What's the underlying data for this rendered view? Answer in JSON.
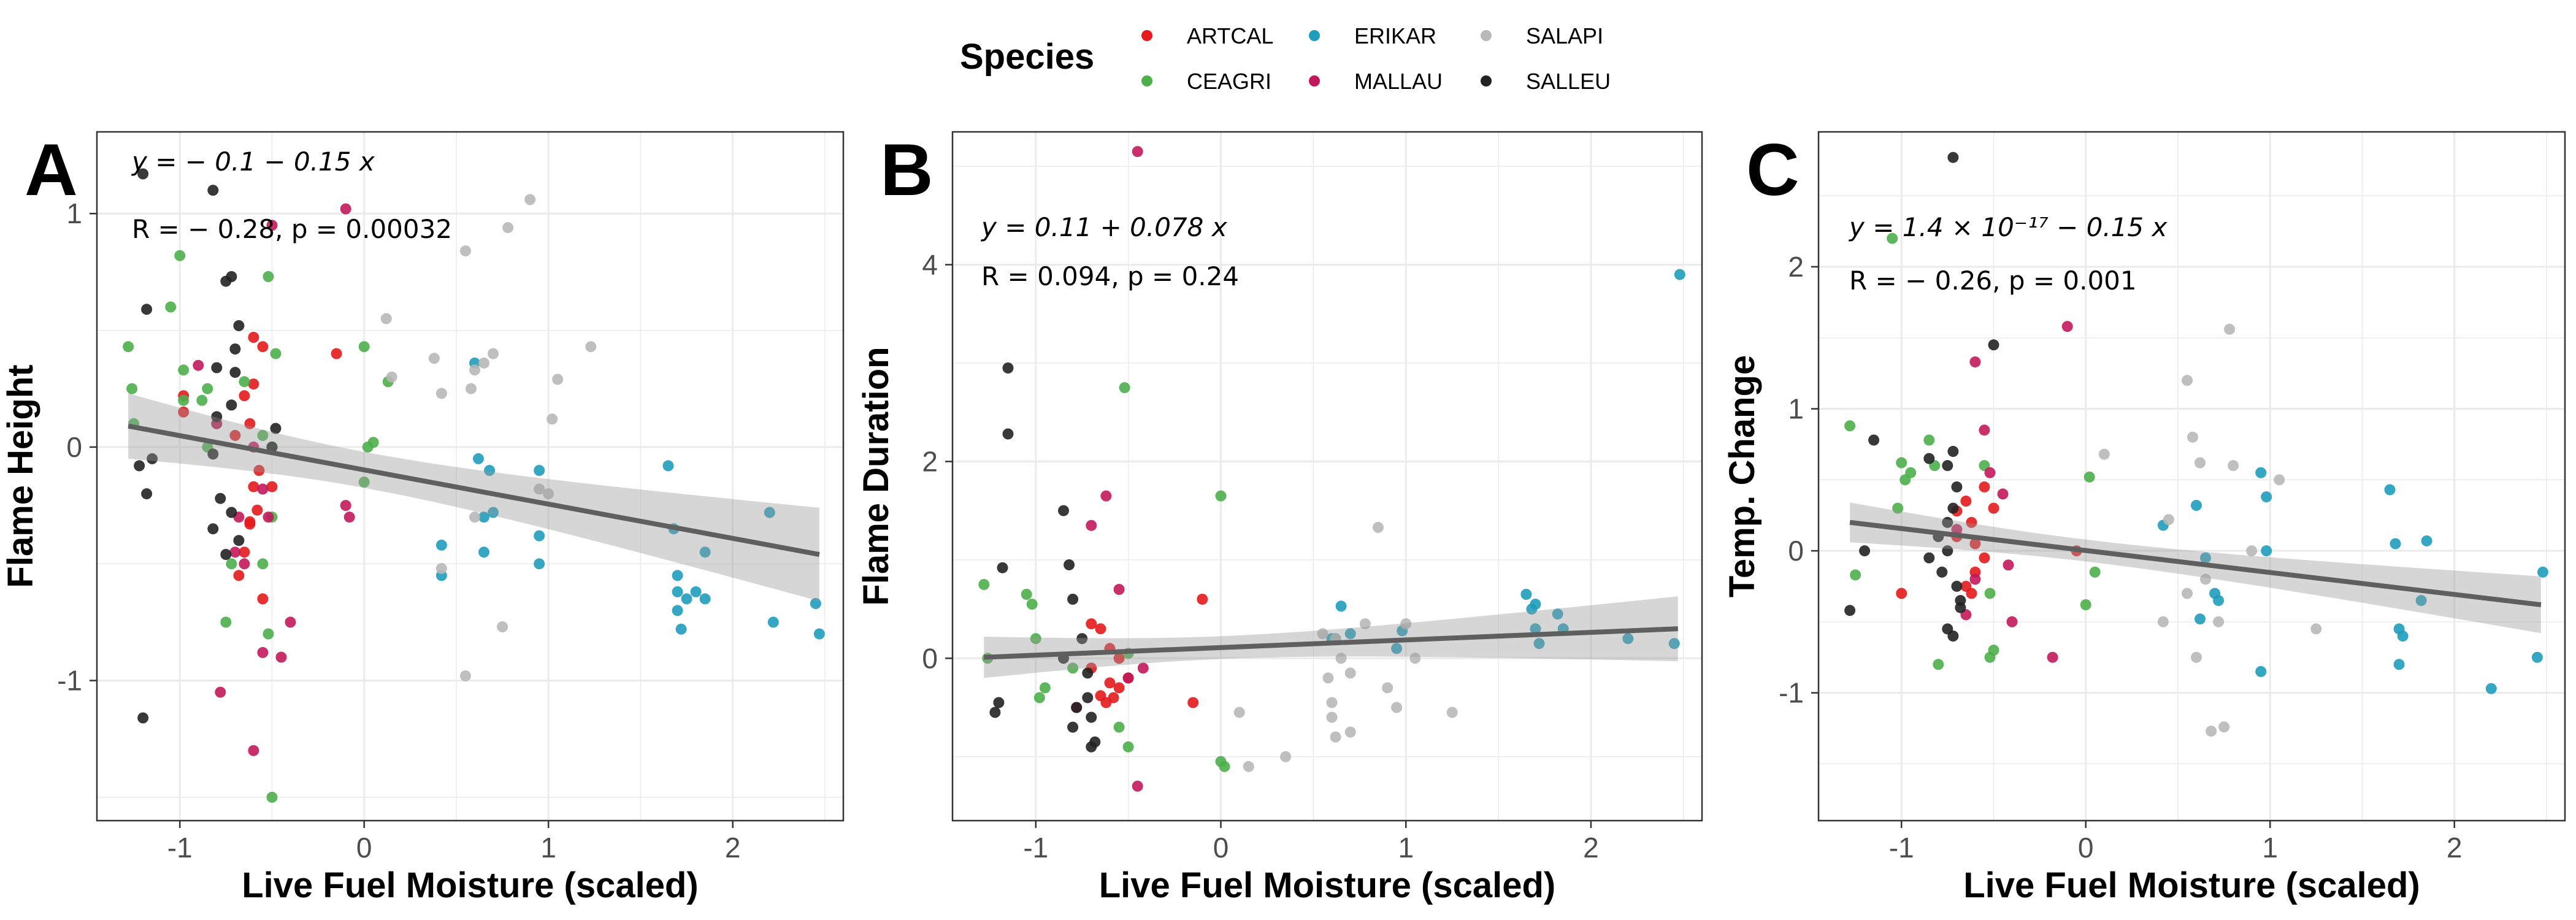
{
  "chart_data": {
    "legend": {
      "title": "Species",
      "placement": "top-center",
      "items": [
        {
          "label": "ARTCAL",
          "color": "#e41a1c"
        },
        {
          "label": "CEAGRI",
          "color": "#4daf4a"
        },
        {
          "label": "ERIKAR",
          "color": "#1f9dbb"
        },
        {
          "label": "MALLAU",
          "color": "#c2185b"
        },
        {
          "label": "SALAPI",
          "color": "#b8b8b8"
        },
        {
          "label": "SALLEU",
          "color": "#222222"
        }
      ]
    },
    "panels": [
      {
        "type": "scatter",
        "panel_label": "A",
        "xlabel": "Live Fuel Moisture (scaled)",
        "ylabel": "Flame Height",
        "xlim": [
          -1.45,
          2.6
        ],
        "ylim": [
          -1.6,
          1.35
        ],
        "xticks": [
          -1,
          0,
          1,
          2
        ],
        "yticks": [
          -1,
          0,
          1
        ],
        "grid": true,
        "equation": "y = − 0.1 − 0.15 x",
        "stats": "R = − 0.28, p = 0.00032",
        "fit": {
          "x": [
            -1.28,
            2.47
          ],
          "y": [
            0.09,
            -0.46
          ],
          "ci_lo": [
            -0.05,
            -0.66
          ],
          "ci_hi": [
            0.21,
            -0.24
          ],
          "xm": 0.0,
          "ym": -0.08
        },
        "series": [
          {
            "name": "ARTCAL",
            "color": "#e41a1c",
            "x": [
              -0.98,
              -0.6,
              -0.55,
              -0.6,
              -0.65,
              -0.62,
              -0.7,
              -0.57,
              -0.5,
              -0.58,
              -0.62,
              -0.65,
              -0.68,
              -0.55,
              -0.6,
              -0.62,
              -0.5,
              -0.15,
              -0.98
            ],
            "y": [
              0.22,
              0.47,
              0.43,
              0.27,
              0.22,
              0.1,
              0.05,
              -0.1,
              -0.17,
              -0.27,
              -0.33,
              -0.45,
              -0.55,
              -0.65,
              -0.17,
              -0.32,
              0.0,
              0.4,
              0.15
            ]
          },
          {
            "name": "CEAGRI",
            "color": "#4daf4a",
            "x": [
              -1.28,
              -1.26,
              -1.25,
              -1.05,
              -1.0,
              -0.98,
              -0.98,
              -0.88,
              -0.85,
              -0.8,
              -0.65,
              -0.55,
              -0.52,
              -0.5,
              -0.5,
              -0.55,
              -0.52,
              -0.5,
              -0.48,
              0.0,
              0.02,
              0.0,
              0.05,
              0.13,
              -0.75,
              -0.72,
              -0.85
            ],
            "y": [
              0.43,
              0.25,
              0.1,
              0.6,
              0.82,
              0.33,
              0.2,
              0.2,
              0.25,
              0.1,
              0.28,
              0.05,
              0.73,
              0.0,
              -0.3,
              -0.5,
              -0.8,
              -1.5,
              0.4,
              0.43,
              0.0,
              -0.15,
              0.02,
              0.28,
              -0.75,
              -0.5,
              0.0
            ]
          },
          {
            "name": "ERIKAR",
            "color": "#1f9dbb",
            "x": [
              0.6,
              0.62,
              0.68,
              0.7,
              0.65,
              0.95,
              0.95,
              0.95,
              0.42,
              0.42,
              1.65,
              1.68,
              1.7,
              1.7,
              1.72,
              1.75,
              1.8,
              1.85,
              1.85,
              2.2,
              2.22,
              2.45,
              2.47,
              0.65,
              1.7
            ],
            "y": [
              0.36,
              -0.05,
              -0.1,
              -0.28,
              -0.45,
              -0.1,
              -0.38,
              -0.5,
              -0.55,
              -0.42,
              -0.08,
              -0.35,
              -0.55,
              -0.7,
              -0.78,
              -0.65,
              -0.62,
              -0.65,
              -0.45,
              -0.28,
              -0.75,
              -0.67,
              -0.8,
              -0.3,
              -0.62
            ]
          },
          {
            "name": "MALLAU",
            "color": "#c2185b",
            "x": [
              -0.9,
              -0.8,
              -0.78,
              -0.68,
              -0.65,
              -0.6,
              -0.55,
              -0.52,
              -0.45,
              -0.4,
              -0.1,
              -0.1,
              -0.08,
              -0.55,
              -0.6,
              -0.7,
              -0.5
            ],
            "y": [
              0.35,
              0.1,
              -1.05,
              -0.3,
              -0.5,
              -1.3,
              -0.18,
              -0.3,
              -0.9,
              -0.75,
              1.02,
              -0.25,
              -0.3,
              -0.88,
              0.0,
              -0.45,
              0.95
            ]
          },
          {
            "name": "SALAPI",
            "color": "#b8b8b8",
            "x": [
              0.12,
              0.15,
              0.38,
              0.42,
              0.55,
              0.58,
              0.6,
              0.65,
              0.7,
              0.78,
              0.9,
              0.95,
              1.02,
              1.05,
              1.23,
              0.42,
              0.55,
              0.75,
              1.0,
              0.6
            ],
            "y": [
              0.55,
              0.3,
              0.38,
              0.23,
              0.84,
              0.25,
              0.33,
              0.36,
              0.4,
              0.94,
              1.06,
              -0.18,
              0.12,
              0.29,
              0.43,
              -0.52,
              -0.98,
              -0.77,
              -0.2,
              -0.3
            ]
          },
          {
            "name": "SALLEU",
            "color": "#222222",
            "x": [
              -1.2,
              -1.18,
              -1.15,
              -1.22,
              -1.18,
              -1.2,
              -0.82,
              -0.8,
              -0.75,
              -0.72,
              -0.68,
              -0.7,
              -0.72,
              -0.8,
              -0.82,
              -0.78,
              -0.72,
              -0.5,
              -0.48,
              -0.75,
              -0.82,
              -0.68,
              -0.7
            ],
            "y": [
              1.17,
              0.59,
              -0.05,
              -0.08,
              -0.2,
              -1.16,
              1.1,
              0.34,
              0.71,
              0.73,
              0.52,
              0.42,
              0.18,
              0.13,
              -0.03,
              -0.22,
              -0.28,
              0.0,
              0.08,
              -0.46,
              -0.35,
              -0.4,
              0.32
            ]
          }
        ]
      },
      {
        "type": "scatter",
        "panel_label": "B",
        "xlabel": "Live Fuel Moisture (scaled)",
        "ylabel": "Flame Duration",
        "xlim": [
          -1.45,
          2.6
        ],
        "ylim": [
          -1.65,
          5.35
        ],
        "xticks": [
          -1,
          0,
          1,
          2
        ],
        "yticks": [
          0,
          2,
          4
        ],
        "grid": true,
        "equation": "y = 0.11 + 0.078 x",
        "stats": "R = 0.094, p = 0.24",
        "fit": {
          "x": [
            -1.28,
            2.47
          ],
          "y": [
            0.01,
            0.3
          ],
          "ci_lo": [
            -0.2,
            -0.03
          ],
          "ci_hi": [
            0.22,
            0.65
          ],
          "xm": 0.0,
          "ym": 0.11
        },
        "series": [
          {
            "name": "ARTCAL",
            "color": "#e41a1c",
            "x": [
              -0.7,
              -0.65,
              -0.6,
              -0.55,
              -0.6,
              -0.65,
              -0.62,
              -0.58,
              -0.55,
              -0.5,
              -0.15,
              -0.1,
              -0.7
            ],
            "y": [
              0.35,
              0.3,
              0.1,
              0.0,
              -0.25,
              -0.38,
              -0.45,
              -0.4,
              -0.3,
              -0.2,
              -0.45,
              0.6,
              -0.1
            ]
          },
          {
            "name": "CEAGRI",
            "color": "#4daf4a",
            "x": [
              -1.28,
              -1.26,
              -1.05,
              -1.02,
              -1.0,
              -0.98,
              -0.52,
              -0.55,
              -0.5,
              -0.5,
              0.0,
              0.0,
              0.02,
              -0.8,
              -0.95
            ],
            "y": [
              0.75,
              0.0,
              0.65,
              0.55,
              0.2,
              -0.4,
              2.75,
              -0.7,
              0.05,
              -0.9,
              1.65,
              -1.05,
              -1.1,
              -0.1,
              -0.3
            ]
          },
          {
            "name": "ERIKAR",
            "color": "#1f9dbb",
            "x": [
              2.48,
              0.62,
              0.65,
              0.7,
              0.95,
              0.98,
              1.65,
              1.68,
              1.7,
              1.72,
              1.82,
              1.85,
              2.2,
              2.45,
              0.6,
              1.7
            ],
            "y": [
              3.9,
              0.2,
              0.53,
              0.25,
              0.1,
              0.28,
              0.65,
              0.5,
              0.3,
              0.15,
              0.45,
              0.3,
              0.2,
              0.15,
              0.2,
              0.55
            ]
          },
          {
            "name": "MALLAU",
            "color": "#c2185b",
            "x": [
              -0.45,
              -0.62,
              -0.7,
              -0.55,
              -0.5,
              -0.42,
              -0.45,
              -0.78
            ],
            "y": [
              5.15,
              1.65,
              1.35,
              0.7,
              -0.2,
              -0.1,
              -1.3,
              -0.5
            ]
          },
          {
            "name": "SALAPI",
            "color": "#b8b8b8",
            "x": [
              0.15,
              0.1,
              0.35,
              0.55,
              0.6,
              0.62,
              0.65,
              0.7,
              0.78,
              0.85,
              0.9,
              1.0,
              1.05,
              1.25,
              0.58,
              0.6,
              0.62,
              0.7,
              0.95
            ],
            "y": [
              -1.1,
              -0.55,
              -1.0,
              0.25,
              -0.45,
              -0.8,
              0.0,
              -0.15,
              0.35,
              1.33,
              -0.3,
              0.35,
              0.0,
              -0.55,
              -0.2,
              -0.6,
              0.2,
              -0.75,
              -0.5
            ]
          },
          {
            "name": "SALLEU",
            "color": "#222222",
            "x": [
              -1.15,
              -1.15,
              -1.18,
              -1.2,
              -1.22,
              -0.85,
              -0.82,
              -0.8,
              -0.75,
              -0.72,
              -0.7,
              -0.68,
              -0.78,
              -0.72,
              -0.85,
              -0.8,
              -0.7
            ],
            "y": [
              2.95,
              2.28,
              0.92,
              -0.45,
              -0.55,
              1.5,
              0.95,
              0.6,
              0.2,
              -0.4,
              -0.6,
              -0.85,
              -0.5,
              -0.15,
              0.0,
              -0.7,
              -0.9
            ]
          }
        ]
      },
      {
        "type": "scatter",
        "panel_label": "C",
        "xlabel": "Live Fuel Moisture (scaled)",
        "ylabel": "Temp. Change",
        "xlim": [
          -1.45,
          2.6
        ],
        "ylim": [
          -1.9,
          2.95
        ],
        "xticks": [
          -1,
          0,
          1,
          2
        ],
        "yticks": [
          -1,
          0,
          1,
          2
        ],
        "grid": true,
        "equation": "y = 1.4 × 10⁻¹⁷ − 0.15 x",
        "stats": "R = − 0.26, p = 0.001",
        "fit": {
          "x": [
            -1.28,
            2.47
          ],
          "y": [
            0.2,
            -0.38
          ],
          "ci_lo": [
            0.06,
            -0.58
          ],
          "ci_hi": [
            0.34,
            -0.17
          ],
          "xm": 0.0,
          "ym": 0.0
        },
        "series": [
          {
            "name": "ARTCAL",
            "color": "#e41a1c",
            "x": [
              -0.7,
              -0.65,
              -0.62,
              -0.6,
              -0.55,
              -0.6,
              -0.62,
              -0.7,
              -0.65,
              -0.55,
              -0.05,
              -1.0,
              -0.5
            ],
            "y": [
              0.28,
              0.35,
              0.2,
              0.05,
              -0.05,
              -0.15,
              -0.3,
              0.1,
              -0.25,
              0.45,
              0.0,
              -0.3,
              0.3
            ]
          },
          {
            "name": "CEAGRI",
            "color": "#4daf4a",
            "x": [
              -1.28,
              -1.25,
              -1.05,
              -1.0,
              -0.98,
              -0.85,
              -0.82,
              -0.55,
              -0.52,
              -0.5,
              -0.52,
              0.02,
              0.05,
              0.0,
              -1.02,
              -0.95,
              -0.8
            ],
            "y": [
              0.88,
              -0.17,
              2.2,
              0.62,
              0.5,
              0.78,
              0.6,
              0.6,
              -0.75,
              -0.7,
              -0.3,
              0.52,
              -0.15,
              -0.38,
              0.3,
              0.55,
              -0.8
            ]
          },
          {
            "name": "ERIKAR",
            "color": "#1f9dbb",
            "x": [
              0.42,
              0.6,
              0.65,
              0.7,
              0.95,
              0.98,
              0.98,
              0.95,
              1.65,
              1.68,
              1.7,
              1.72,
              1.85,
              1.82,
              2.2,
              2.45,
              2.48,
              0.62,
              0.72,
              1.7
            ],
            "y": [
              0.18,
              0.32,
              -0.05,
              -0.3,
              0.55,
              0.38,
              0.0,
              -0.85,
              0.43,
              0.05,
              -0.55,
              -0.6,
              0.07,
              -0.35,
              -0.97,
              -0.75,
              -0.15,
              -0.48,
              -0.35,
              -0.8
            ]
          },
          {
            "name": "MALLAU",
            "color": "#c2185b",
            "x": [
              -0.6,
              -0.55,
              -0.52,
              -0.45,
              -0.42,
              -0.65,
              -0.4,
              -0.1,
              -0.18,
              -0.7,
              -0.6
            ],
            "y": [
              1.33,
              0.85,
              0.55,
              0.4,
              -0.1,
              -0.45,
              -0.5,
              1.58,
              -0.75,
              0.15,
              -0.2
            ]
          },
          {
            "name": "SALAPI",
            "color": "#b8b8b8",
            "x": [
              0.1,
              0.45,
              0.55,
              0.58,
              0.62,
              0.68,
              0.75,
              0.78,
              0.8,
              0.9,
              1.05,
              1.25,
              0.6,
              0.65,
              0.72,
              0.42,
              0.55
            ],
            "y": [
              0.68,
              0.22,
              1.2,
              0.8,
              0.62,
              -1.27,
              -1.24,
              1.56,
              0.6,
              0.0,
              0.5,
              -0.55,
              -0.75,
              -0.2,
              -0.5,
              -0.5,
              -0.3
            ]
          },
          {
            "name": "SALLEU",
            "color": "#222222",
            "x": [
              -1.28,
              -1.2,
              -1.15,
              -0.85,
              -0.75,
              -0.72,
              -0.7,
              -0.72,
              -0.75,
              -0.78,
              -0.7,
              -0.68,
              -0.5,
              -0.72,
              -0.8,
              -0.72,
              -0.75,
              -0.68,
              -0.75,
              -0.85
            ],
            "y": [
              -0.42,
              0.0,
              0.78,
              0.65,
              0.6,
              0.7,
              0.45,
              0.3,
              0.0,
              -0.15,
              -0.25,
              -0.4,
              1.45,
              2.77,
              0.1,
              -0.6,
              -0.55,
              -0.35,
              0.2,
              -0.05
            ]
          }
        ]
      }
    ]
  }
}
